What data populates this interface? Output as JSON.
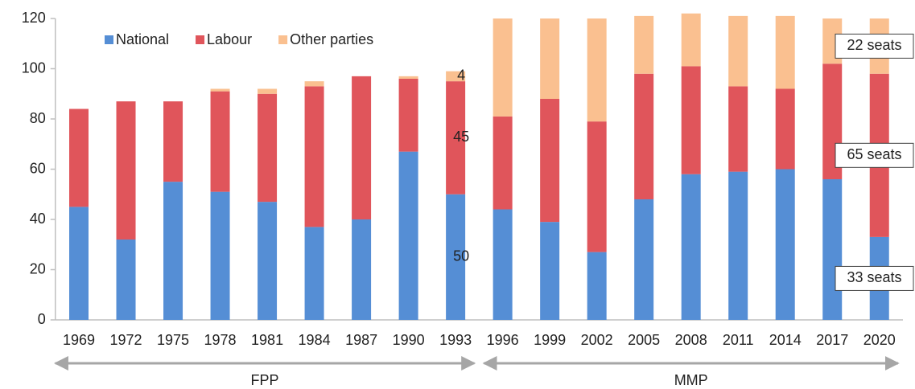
{
  "chart_data": {
    "type": "stacked_bar",
    "categories": [
      "1969",
      "1972",
      "1975",
      "1978",
      "1981",
      "1984",
      "1987",
      "1990",
      "1993",
      "1996",
      "1999",
      "2002",
      "2005",
      "2008",
      "2011",
      "2014",
      "2017",
      "2020"
    ],
    "series": [
      {
        "name": "National",
        "color": "#558ed5",
        "values": [
          45,
          32,
          55,
          51,
          47,
          37,
          40,
          67,
          50,
          44,
          39,
          27,
          48,
          58,
          59,
          60,
          56,
          33
        ],
        "value_labels": [
          null,
          null,
          null,
          null,
          null,
          null,
          null,
          null,
          "50",
          null,
          null,
          null,
          null,
          null,
          null,
          null,
          null,
          "33 seats"
        ]
      },
      {
        "name": "Labour",
        "color": "#e0555b",
        "values": [
          39,
          55,
          32,
          40,
          43,
          56,
          57,
          29,
          45,
          37,
          49,
          52,
          50,
          43,
          34,
          32,
          46,
          65
        ],
        "value_labels": [
          null,
          null,
          null,
          null,
          null,
          null,
          null,
          null,
          "45",
          null,
          null,
          null,
          null,
          null,
          null,
          null,
          null,
          "65 seats"
        ]
      },
      {
        "name": "Other parties",
        "color": "#fac090",
        "values": [
          0,
          0,
          0,
          1,
          2,
          2,
          0,
          1,
          4,
          39,
          32,
          41,
          23,
          21,
          28,
          29,
          18,
          22
        ],
        "value_labels": [
          null,
          null,
          null,
          null,
          null,
          null,
          null,
          null,
          "4",
          null,
          null,
          null,
          null,
          null,
          null,
          null,
          null,
          "22 seats"
        ]
      }
    ],
    "ylim": [
      0,
      120
    ],
    "yticks": [
      0,
      20,
      40,
      60,
      80,
      100,
      120
    ],
    "grid": false,
    "legend": "upper left",
    "periods": [
      {
        "label": "FPP",
        "from": "1969",
        "to": "1993"
      },
      {
        "label": "MMP",
        "from": "1996",
        "to": "2020"
      }
    ]
  }
}
